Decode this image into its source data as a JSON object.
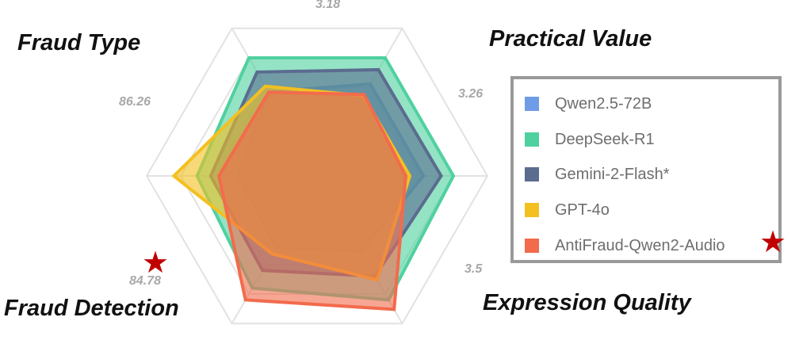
{
  "chart_data": {
    "type": "radar",
    "axes": [
      {
        "name": "Practical Value"
      },
      {
        "name": "Expression Quality"
      },
      {
        "name": ""
      },
      {
        "name": "Fraud Detection"
      },
      {
        "name": "Fraud Type"
      },
      {
        "name": ""
      }
    ],
    "tick_labels": {
      "top": "3.18",
      "upper_right": "3.26",
      "lower_right": "3.5",
      "lower_left": "84.78",
      "upper_left": "86.26"
    },
    "series": [
      {
        "name": "Qwen2.5-72B",
        "color": "#6f9ce6",
        "values": [
          0.78,
          0.78,
          0.64,
          0.6,
          0.58,
          0.71
        ]
      },
      {
        "name": "DeepSeek-R1",
        "color": "#4fd19f",
        "values": [
          1.0,
          1.0,
          1.05,
          0.95,
          0.88,
          1.0
        ]
      },
      {
        "name": "Gemini-2-Flash*",
        "color": "#5b6c8f",
        "values": [
          0.9,
          0.91,
          0.85,
          0.8,
          0.78,
          0.88
        ]
      },
      {
        "name": "GPT-4o",
        "color": "#f4c020",
        "values": [
          0.68,
          0.68,
          0.88,
          0.66,
          1.05,
          0.76
        ]
      },
      {
        "name": "AntiFraud-Qwen2-Audio",
        "color": "#f26b4c",
        "values": [
          0.69,
          0.65,
          1.13,
          1.05,
          0.72,
          0.71
        ]
      }
    ],
    "highlight": "AntiFraud-Qwen2-Audio",
    "grid": true,
    "legend_position": "right"
  }
}
